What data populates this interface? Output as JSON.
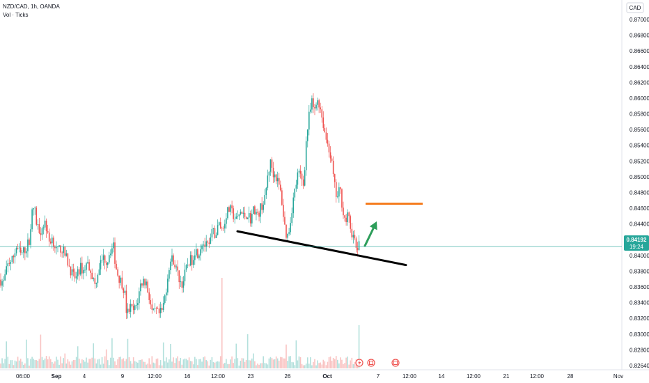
{
  "header": {
    "symbol": "NZD/CAD, 1h, OANDA",
    "volume_label": "Vol · Ticks"
  },
  "price_scale": {
    "currency": "CAD",
    "last_price": "0.84192",
    "countdown": "19:24"
  },
  "colors": {
    "up": "#26a69a",
    "down": "#ef5350",
    "support_line": "#000000",
    "target_line": "#f57c1f",
    "arrow": "#2e9e5b",
    "price_line": "#26a69a"
  },
  "chart_data": {
    "type": "candlestick",
    "ylim": [
      0.8264,
      0.8715
    ],
    "y_ticks": [
      "0.87000",
      "0.86800",
      "0.86600",
      "0.86400",
      "0.86200",
      "0.86000",
      "0.85800",
      "0.85600",
      "0.85400",
      "0.85200",
      "0.85000",
      "0.84800",
      "0.84600",
      "0.84400",
      "0.84200",
      "0.84000",
      "0.83800",
      "0.83600",
      "0.83400",
      "0.83200",
      "0.83000",
      "0.82800",
      "0.82640"
    ],
    "x_ticks": [
      "06:00",
      "Sep",
      "4",
      "9",
      "12:00",
      "16",
      "12:00",
      "23",
      "26",
      "Oct",
      "7",
      "12:00",
      "14",
      "12:00",
      "21",
      "12:00",
      "28",
      "Nov"
    ],
    "bold_x_ticks": [
      "Sep",
      "Oct"
    ],
    "price_path": [
      [
        0,
        0.8376
      ],
      [
        5,
        0.8372
      ],
      [
        12,
        0.8398
      ],
      [
        18,
        0.8402
      ],
      [
        24,
        0.842
      ],
      [
        30,
        0.8408
      ],
      [
        38,
        0.8418
      ],
      [
        42,
        0.8428
      ],
      [
        46,
        0.8462
      ],
      [
        49,
        0.8472
      ],
      [
        53,
        0.8446
      ],
      [
        58,
        0.844
      ],
      [
        65,
        0.8452
      ],
      [
        70,
        0.8425
      ],
      [
        75,
        0.843
      ],
      [
        82,
        0.8412
      ],
      [
        88,
        0.8418
      ],
      [
        95,
        0.8405
      ],
      [
        100,
        0.8392
      ],
      [
        105,
        0.838
      ],
      [
        110,
        0.8378
      ],
      [
        115,
        0.8392
      ],
      [
        120,
        0.8388
      ],
      [
        125,
        0.8398
      ],
      [
        130,
        0.839
      ],
      [
        136,
        0.8368
      ],
      [
        142,
        0.8392
      ],
      [
        148,
        0.8405
      ],
      [
        154,
        0.84
      ],
      [
        158,
        0.8415
      ],
      [
        163,
        0.8418
      ],
      [
        166,
        0.8395
      ],
      [
        170,
        0.838
      ],
      [
        175,
        0.8372
      ],
      [
        179,
        0.836
      ],
      [
        182,
        0.833
      ],
      [
        187,
        0.834
      ],
      [
        192,
        0.8335
      ],
      [
        197,
        0.8345
      ],
      [
        202,
        0.837
      ],
      [
        206,
        0.8375
      ],
      [
        210,
        0.8372
      ],
      [
        215,
        0.835
      ],
      [
        219,
        0.833
      ],
      [
        224,
        0.8335
      ],
      [
        228,
        0.833
      ],
      [
        233,
        0.8335
      ],
      [
        238,
        0.836
      ],
      [
        243,
        0.8395
      ],
      [
        248,
        0.8405
      ],
      [
        253,
        0.839
      ],
      [
        258,
        0.8375
      ],
      [
        262,
        0.837
      ],
      [
        266,
        0.8385
      ],
      [
        271,
        0.84
      ],
      [
        276,
        0.8402
      ],
      [
        280,
        0.8415
      ],
      [
        285,
        0.841
      ],
      [
        290,
        0.8425
      ],
      [
        295,
        0.842
      ],
      [
        300,
        0.8418
      ],
      [
        305,
        0.8438
      ],
      [
        310,
        0.8435
      ],
      [
        315,
        0.845
      ],
      [
        320,
        0.844
      ],
      [
        325,
        0.8462
      ],
      [
        330,
        0.8468
      ],
      [
        335,
        0.846
      ],
      [
        340,
        0.8452
      ],
      [
        345,
        0.8465
      ],
      [
        350,
        0.8458
      ],
      [
        355,
        0.8462
      ],
      [
        360,
        0.8455
      ],
      [
        365,
        0.847
      ],
      [
        370,
        0.8458
      ],
      [
        375,
        0.8472
      ],
      [
        380,
        0.8478
      ],
      [
        385,
        0.8515
      ],
      [
        389,
        0.853
      ],
      [
        392,
        0.8515
      ],
      [
        396,
        0.8512
      ],
      [
        400,
        0.85
      ],
      [
        404,
        0.8485
      ],
      [
        408,
        0.845
      ],
      [
        412,
        0.843
      ],
      [
        416,
        0.8445
      ],
      [
        420,
        0.8475
      ],
      [
        424,
        0.8495
      ],
      [
        428,
        0.8515
      ],
      [
        432,
        0.851
      ],
      [
        436,
        0.85
      ],
      [
        440,
        0.856
      ],
      [
        444,
        0.859
      ],
      [
        448,
        0.8606
      ],
      [
        452,
        0.8595
      ],
      [
        456,
        0.8612
      ],
      [
        460,
        0.86
      ],
      [
        464,
        0.858
      ],
      [
        468,
        0.856
      ],
      [
        472,
        0.855
      ],
      [
        476,
        0.853
      ],
      [
        480,
        0.85
      ],
      [
        484,
        0.848
      ],
      [
        488,
        0.8495
      ],
      [
        492,
        0.847
      ],
      [
        496,
        0.845
      ],
      [
        500,
        0.846
      ],
      [
        504,
        0.844
      ],
      [
        508,
        0.843
      ],
      [
        512,
        0.8415
      ],
      [
        515,
        0.842
      ],
      [
        517,
        0.8419
      ]
    ],
    "annotations": [
      {
        "type": "trend_line",
        "from": [
          341,
          0.8439
        ],
        "to": [
          583,
          0.8395
        ],
        "color": "#000000"
      },
      {
        "type": "horizontal_segment",
        "from": [
          525,
          0.8475
        ],
        "to": [
          607,
          0.8475
        ],
        "color": "#f57c1f"
      },
      {
        "type": "arrow",
        "from": [
          524,
          0.842
        ],
        "to": [
          541,
          0.8452
        ],
        "color": "#2e9e5b"
      },
      {
        "type": "horizontal_line",
        "value": 0.84192,
        "color": "#26a69a"
      }
    ]
  }
}
